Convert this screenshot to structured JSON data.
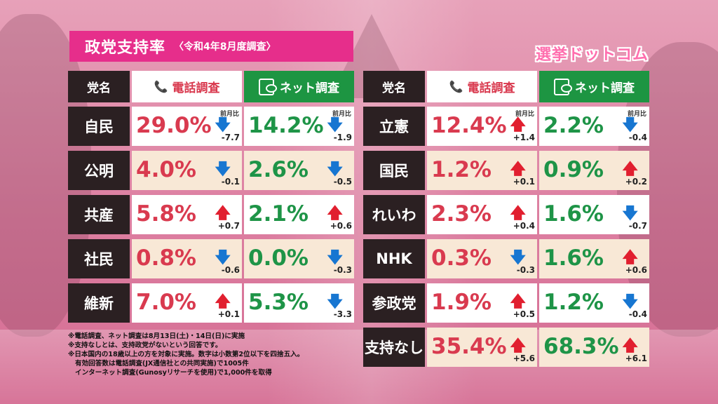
{
  "title": "政党支持率",
  "subtitle": "〈令和4年8月度調査〉",
  "logo": "選挙ドットコム",
  "headers": {
    "party": "党名",
    "phone": "電話調査",
    "net": "ネット調査"
  },
  "mom_label": "前月比",
  "icons": {
    "phone": "phone-icon",
    "net": "smartphone-icon"
  },
  "colors": {
    "title_bg": "#e62e8b",
    "phone_text": "#d93a4f",
    "net_text": "#1e9447",
    "up": "#e11f2f",
    "down": "#1776d1"
  },
  "left_table": [
    {
      "party": "自民",
      "phone": "29.0%",
      "phone_dir": "down",
      "phone_delta": "-7.7",
      "net": "14.2%",
      "net_dir": "down",
      "net_delta": "-1.9"
    },
    {
      "party": "公明",
      "phone": "4.0%",
      "phone_dir": "down",
      "phone_delta": "-0.1",
      "net": "2.6%",
      "net_dir": "down",
      "net_delta": "-0.5"
    },
    {
      "party": "共産",
      "phone": "5.8%",
      "phone_dir": "up",
      "phone_delta": "+0.7",
      "net": "2.1%",
      "net_dir": "up",
      "net_delta": "+0.6"
    },
    {
      "party": "社民",
      "phone": "0.8%",
      "phone_dir": "down",
      "phone_delta": "-0.6",
      "net": "0.0%",
      "net_dir": "down",
      "net_delta": "-0.3"
    },
    {
      "party": "維新",
      "phone": "7.0%",
      "phone_dir": "up",
      "phone_delta": "+0.1",
      "net": "5.3%",
      "net_dir": "down",
      "net_delta": "-3.3"
    }
  ],
  "right_table": [
    {
      "party": "立憲",
      "phone": "12.4%",
      "phone_dir": "up",
      "phone_delta": "+1.4",
      "net": "2.2%",
      "net_dir": "down",
      "net_delta": "-0.4"
    },
    {
      "party": "国民",
      "phone": "1.2%",
      "phone_dir": "up",
      "phone_delta": "+0.1",
      "net": "0.9%",
      "net_dir": "up",
      "net_delta": "+0.2"
    },
    {
      "party": "れいわ",
      "phone": "2.3%",
      "phone_dir": "up",
      "phone_delta": "+0.4",
      "net": "1.6%",
      "net_dir": "down",
      "net_delta": "-0.7"
    },
    {
      "party": "NHK",
      "phone": "0.3%",
      "phone_dir": "down",
      "phone_delta": "-0.3",
      "net": "1.6%",
      "net_dir": "up",
      "net_delta": "+0.6"
    },
    {
      "party": "参政党",
      "phone": "1.9%",
      "phone_dir": "up",
      "phone_delta": "+0.5",
      "net": "1.2%",
      "net_dir": "down",
      "net_delta": "-0.4"
    },
    {
      "party": "支持なし",
      "phone": "35.4%",
      "phone_dir": "up",
      "phone_delta": "+5.6",
      "net": "68.3%",
      "net_dir": "up",
      "net_delta": "+6.1"
    }
  ],
  "footnotes": [
    "※電話調査、ネット調査は8月13日(土)・14日(日)に実施",
    "※支持なしとは、支持政党がないという回答です。",
    "※日本国内の18歳以上の方を対象に実施。数字は小数第2位以下を四捨五入。",
    "有効回答数は電話調査(JX通信社との共同実施)で1005件",
    "インターネット調査(Gunosyリサーチを使用)で1,000件を取得"
  ]
}
